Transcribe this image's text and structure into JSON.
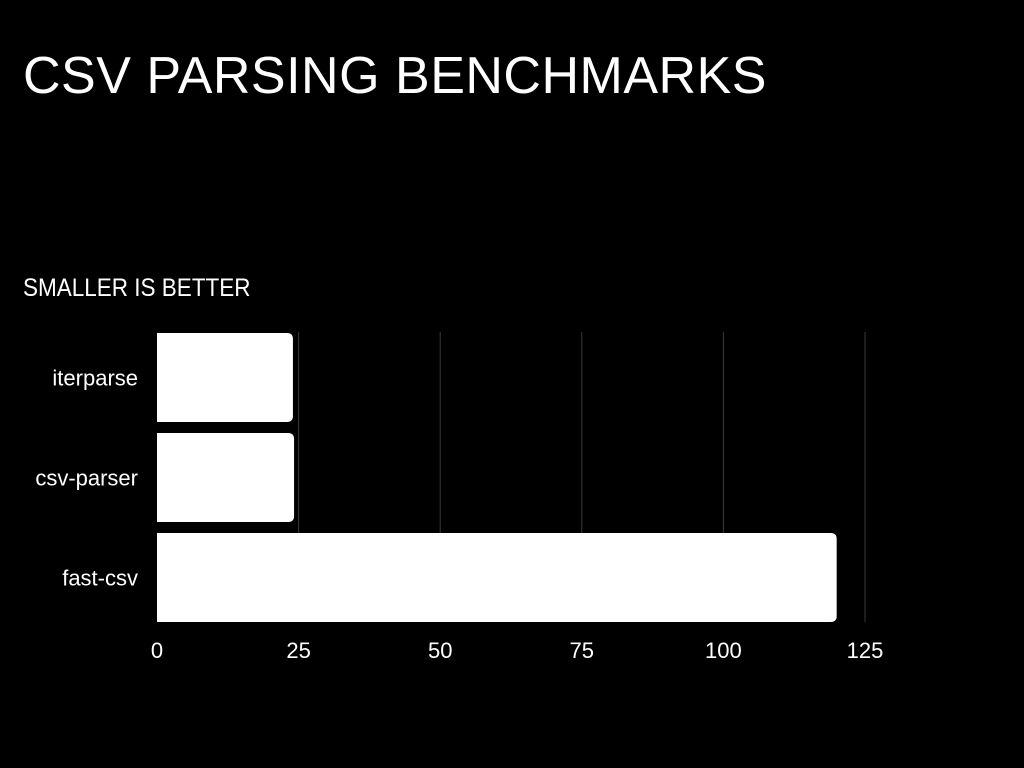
{
  "slide": {
    "title": "CSV PARSING BENCHMARKS"
  },
  "colors": {
    "background": "#000000",
    "bar": "#ffffff",
    "text": "#ffffff",
    "grid": "#3a3a3a"
  },
  "chart_data": {
    "type": "bar",
    "orientation": "horizontal",
    "title": "",
    "subtitle": "SMALLER IS BETTER",
    "xlabel": "",
    "ylabel": "",
    "categories": [
      "iterparse",
      "csv-parser",
      "fast-csv"
    ],
    "values": [
      24,
      24.2,
      120
    ],
    "xlim": [
      0,
      125
    ],
    "xticks": [
      0,
      25,
      50,
      75,
      100,
      125
    ],
    "grid": true,
    "legend": "none"
  }
}
